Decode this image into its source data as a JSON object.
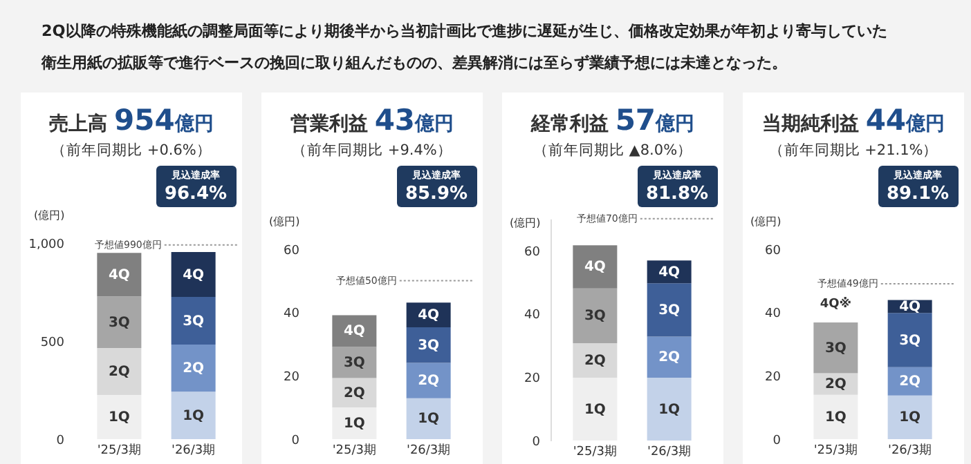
{
  "chart_data": [
    {
      "type": "bar",
      "title": "売上高 954億円",
      "subtitle": "（前年同期比 +0.6%）",
      "ylabel": "(億円)",
      "categories": [
        "'25/3期",
        "'26/3期"
      ],
      "stacked": true,
      "ylim": [
        0,
        1000
      ],
      "yticks": [
        0,
        500,
        {
          "value": 1000,
          "label": "1,000"
        }
      ],
      "series": [
        {
          "name": "1Q",
          "colors": [
            "#efefef",
            "#c3d2e9"
          ],
          "values": [
            225,
            242
          ]
        },
        {
          "name": "2Q",
          "colors": [
            "#d9d9d9",
            "#7393c8"
          ],
          "values": [
            240,
            240
          ]
        },
        {
          "name": "3Q",
          "colors": [
            "#a6a6a6",
            "#3e5f98"
          ],
          "values": [
            263,
            243
          ]
        },
        {
          "name": "4Q",
          "colors": [
            "#808080",
            "#1f3358"
          ],
          "values": [
            222,
            229
          ]
        }
      ],
      "ref_lines": [
        {
          "axis": "y",
          "value": 990,
          "label": "予想値990億円",
          "line_style": "dotted",
          "color": "#999999"
        }
      ],
      "annotations": [
        "見込達成率\n96.4%",
        "2Q以降の特殊機能紙の調整局面等により期後半から当初計画比で進捗に遅延が生じ、価格改定効果が年初より寄与していた衛生用紙の拡販等で進行ベースの挽回に取り組んだものの、差異解消には至らず業績予想には未達となった。"
      ]
    },
    {
      "type": "bar",
      "title": "営業利益 43億円",
      "subtitle": "（前年同期比 +9.4%）",
      "ylabel": "(億円)",
      "categories": [
        "'25/3期",
        "'26/3期"
      ],
      "stacked": true,
      "ylim": [
        0,
        60
      ],
      "yticks": [
        0,
        20,
        40,
        60
      ],
      "series": [
        {
          "name": "1Q",
          "colors": [
            "#efefef",
            "#c3d2e9"
          ],
          "values": [
            10,
            12.9
          ]
        },
        {
          "name": "2Q",
          "colors": [
            "#d9d9d9",
            "#7393c8"
          ],
          "values": [
            9.3,
            11.2
          ]
        },
        {
          "name": "3Q",
          "colors": [
            "#a6a6a6",
            "#3e5f98"
          ],
          "values": [
            9.8,
            11.2
          ]
        },
        {
          "name": "4Q",
          "colors": [
            "#808080",
            "#1f3358"
          ],
          "values": [
            10,
            7.8
          ]
        }
      ],
      "ref_lines": [
        {
          "axis": "y",
          "value": 50,
          "label": "予想値50億円",
          "line_style": "dotted",
          "color": "#999999"
        }
      ],
      "annotations": [
        "見込達成率\n85.9%"
      ]
    },
    {
      "type": "bar",
      "title": "経常利益 57億円",
      "subtitle": "（前年同期比 ▲8.0%）",
      "ylabel": "(億円)",
      "categories": [
        "'25/3期",
        "'26/3期"
      ],
      "stacked": true,
      "ylim": [
        0,
        70
      ],
      "yticks": [
        0,
        20,
        40,
        60
      ],
      "series": [
        {
          "name": "1Q",
          "colors": [
            "#efefef",
            "#c3d2e9"
          ],
          "values": [
            19.8,
            19.8
          ]
        },
        {
          "name": "2Q",
          "colors": [
            "#d9d9d9",
            "#7393c8"
          ],
          "values": [
            10.9,
            13
          ]
        },
        {
          "name": "3Q",
          "colors": [
            "#a6a6a6",
            "#3e5f98"
          ],
          "values": [
            17.3,
            16.8
          ]
        },
        {
          "name": "4Q",
          "colors": [
            "#808080",
            "#1f3358"
          ],
          "values": [
            13.6,
            7.2
          ]
        }
      ],
      "ref_lines": [
        {
          "axis": "y",
          "value": 70,
          "label": "予想値70億円",
          "line_style": "dotted",
          "color": "#999999"
        }
      ],
      "annotations": [
        "見込達成率\n81.8%"
      ]
    },
    {
      "type": "bar",
      "title": "当期純利益 44億円",
      "subtitle": "（前年同期比 +21.1%）",
      "ylabel": "(億円)",
      "categories": [
        "'25/3期",
        "'26/3期"
      ],
      "stacked": true,
      "ylim": [
        0,
        60
      ],
      "yticks": [
        0,
        20,
        40,
        60
      ],
      "series": [
        {
          "name": "1Q",
          "colors": [
            "#efefef",
            "#c3d2e9"
          ],
          "values": [
            14,
            13.8
          ]
        },
        {
          "name": "2Q",
          "colors": [
            "#d9d9d9",
            "#7393c8"
          ],
          "values": [
            6.8,
            8.9
          ]
        },
        {
          "name": "3Q",
          "colors": [
            "#a6a6a6",
            "#3e5f98"
          ],
          "values": [
            16,
            17.1
          ]
        },
        {
          "name": "4Q",
          "colors": [
            null,
            "#1f3358"
          ],
          "values": [
            null,
            4.1
          ]
        }
      ],
      "ref_lines": [
        {
          "axis": "y",
          "value": 49,
          "label": "予想値49億円",
          "line_style": "dotted",
          "color": "#999999"
        }
      ],
      "annotations": [
        "見込達成率\n89.1%",
        "4Q※"
      ]
    }
  ]
}
